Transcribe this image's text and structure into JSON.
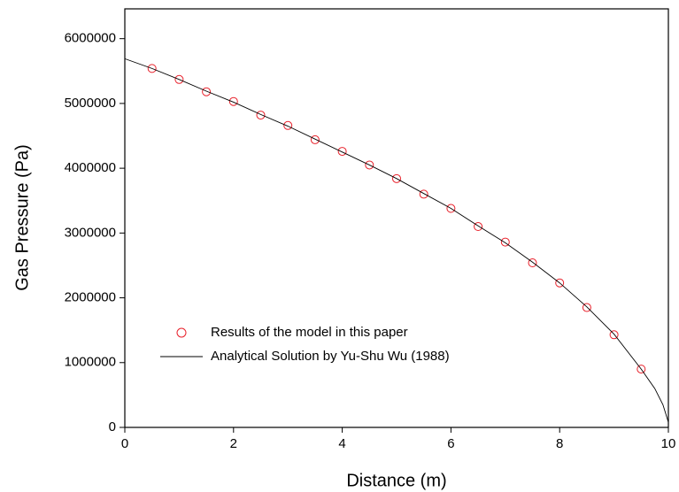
{
  "chart_data": {
    "type": "line",
    "xlabel": "Distance (m)",
    "ylabel": "Gas Pressure (Pa)",
    "xlim": [
      0,
      10
    ],
    "ylim": [
      0,
      6460000
    ],
    "xticks": [
      0,
      2,
      4,
      6,
      8,
      10
    ],
    "yticks": [
      0,
      1000000,
      2000000,
      3000000,
      4000000,
      5000000,
      6000000
    ],
    "legend": "lower left",
    "series": [
      {
        "name": "Results of the model in this paper",
        "type": "scatter",
        "color": "#e8202a",
        "x": [
          0.5,
          1.0,
          1.5,
          2.0,
          2.5,
          3.0,
          3.5,
          4.0,
          4.5,
          5.0,
          5.5,
          6.0,
          6.5,
          7.0,
          7.5,
          8.0,
          8.5,
          9.0,
          9.5
        ],
        "values": [
          5540000,
          5370000,
          5180000,
          5030000,
          4820000,
          4660000,
          4440000,
          4260000,
          4050000,
          3840000,
          3600000,
          3380000,
          3100000,
          2860000,
          2540000,
          2230000,
          1850000,
          1430000,
          900000
        ]
      },
      {
        "name": "Analytical Solution by Yu-Shu Wu (1988)",
        "type": "line",
        "color": "#000000",
        "x": [
          0,
          0.5,
          1.0,
          1.5,
          2.0,
          2.5,
          3.0,
          3.5,
          4.0,
          4.5,
          5.0,
          5.5,
          6.0,
          6.5,
          7.0,
          7.5,
          8.0,
          8.5,
          9.0,
          9.5,
          9.75,
          9.9,
          10
        ],
        "values": [
          5690000,
          5540000,
          5370000,
          5190000,
          5020000,
          4830000,
          4650000,
          4450000,
          4250000,
          4050000,
          3840000,
          3610000,
          3380000,
          3110000,
          2850000,
          2550000,
          2230000,
          1860000,
          1440000,
          900000,
          600000,
          350000,
          80000
        ]
      }
    ]
  }
}
